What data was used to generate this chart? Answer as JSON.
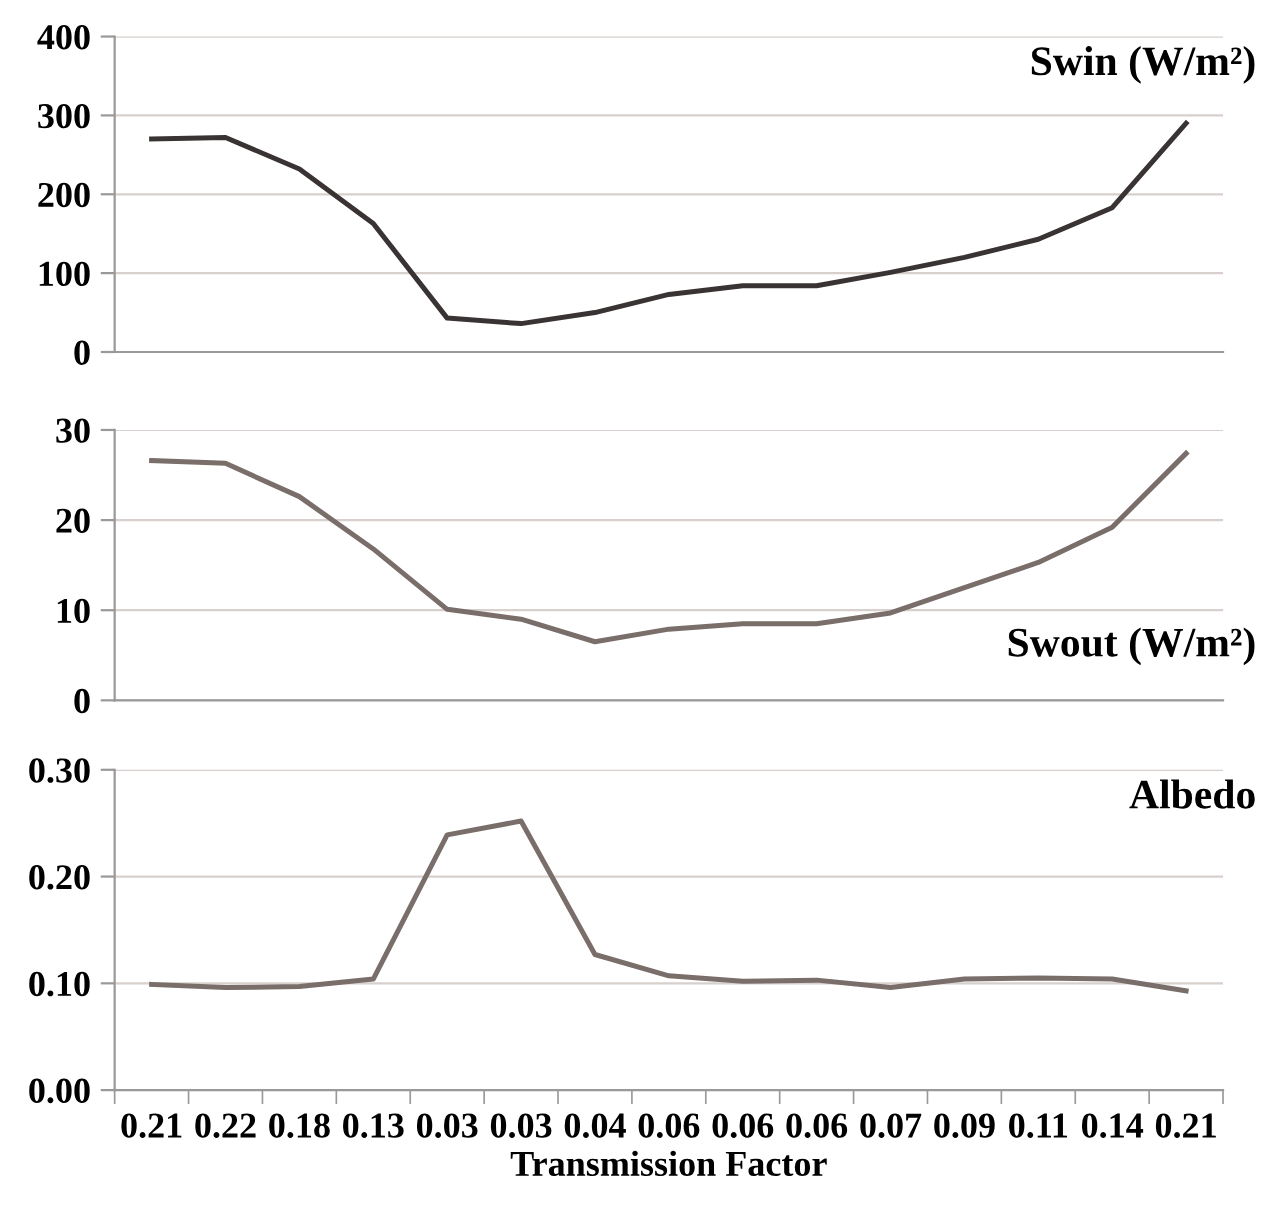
{
  "chart_data": [
    {
      "type": "line",
      "title": "Swin (W/m²)",
      "categories": [
        "0.21",
        "0.22",
        "0.18",
        "0.13",
        "0.03",
        "0.03",
        "0.04",
        "0.06",
        "0.06",
        "0.06",
        "0.07",
        "0.09",
        "0.11",
        "0.14",
        "0.21"
      ],
      "series": [
        {
          "color": "#3a3333",
          "values": [
            270,
            272,
            232,
            163,
            43,
            36,
            50,
            73,
            84,
            84,
            101,
            120,
            143,
            183,
            290
          ]
        }
      ],
      "ylim": [
        0,
        400
      ],
      "yticks": [
        0,
        100,
        200,
        300,
        400
      ],
      "grid": "y",
      "tick_labels": "y"
    },
    {
      "type": "line",
      "title": "Swout (W/m²)",
      "categories": [
        "0.21",
        "0.22",
        "0.18",
        "0.13",
        "0.03",
        "0.03",
        "0.04",
        "0.06",
        "0.06",
        "0.06",
        "0.07",
        "0.09",
        "0.11",
        "0.14",
        "0.21"
      ],
      "series": [
        {
          "color": "#7a6e6a",
          "values": [
            26.6,
            26.3,
            22.6,
            16.8,
            10.1,
            9.0,
            6.5,
            7.9,
            8.5,
            8.5,
            9.7,
            12.5,
            15.3,
            19.2,
            27.4
          ]
        }
      ],
      "ylim": [
        0,
        30
      ],
      "yticks": [
        0,
        10,
        20,
        30
      ],
      "grid": "y",
      "tick_labels": "y"
    },
    {
      "type": "line",
      "title": "Albedo",
      "xlabel": "Transmission Factor",
      "categories": [
        "0.21",
        "0.22",
        "0.18",
        "0.13",
        "0.03",
        "0.03",
        "0.04",
        "0.06",
        "0.06",
        "0.06",
        "0.07",
        "0.09",
        "0.11",
        "0.14",
        "0.21"
      ],
      "series": [
        {
          "color": "#7a6e6a",
          "values": [
            0.099,
            0.096,
            0.097,
            0.104,
            0.239,
            0.252,
            0.127,
            0.107,
            0.102,
            0.103,
            0.096,
            0.104,
            0.105,
            0.104,
            0.093
          ]
        }
      ],
      "ylim": [
        0,
        0.3
      ],
      "yticks": [
        {
          "value": 0,
          "label": "0.00"
        },
        {
          "value": 0.1,
          "label": "0.10"
        },
        {
          "value": 0.2,
          "label": "0.20"
        },
        {
          "value": 0.3,
          "label": "0.30"
        }
      ],
      "grid": "y"
    }
  ]
}
